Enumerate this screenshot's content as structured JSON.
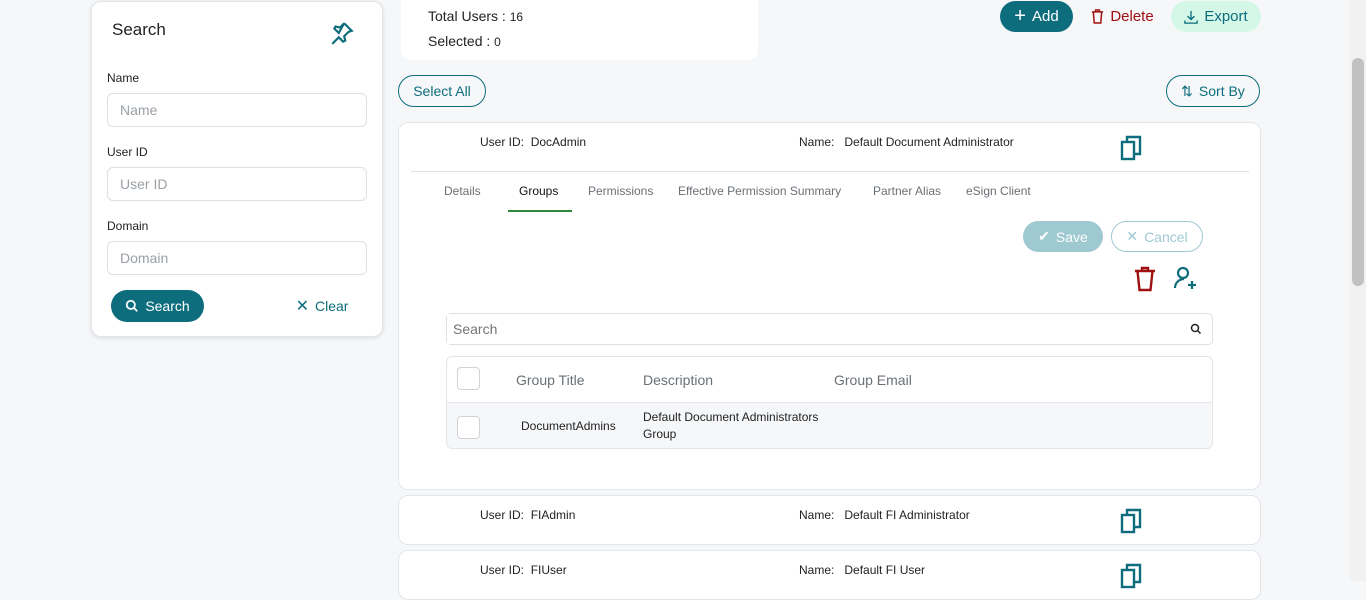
{
  "search_panel": {
    "title": "Search",
    "fields": [
      {
        "label": "Name",
        "placeholder": "Name"
      },
      {
        "label": "User ID",
        "placeholder": "User ID"
      },
      {
        "label": "Domain",
        "placeholder": "Domain"
      }
    ],
    "search_label": "Search",
    "clear_label": "Clear"
  },
  "summary": {
    "total_label": "Total Users :",
    "total": "16",
    "selected_label": "Selected :",
    "selected": "0"
  },
  "toolbar": {
    "add": "Add",
    "delete": "Delete",
    "export": "Export",
    "select_all": "Select All",
    "sort_by": "Sort By"
  },
  "users": [
    {
      "id_label": "User ID:",
      "id": "DocAdmin",
      "name_label": "Name:",
      "name": "Default Document Administrator"
    },
    {
      "id_label": "User ID:",
      "id": "FIAdmin",
      "name_label": "Name:",
      "name": "Default FI Administrator"
    },
    {
      "id_label": "User ID:",
      "id": "FIUser",
      "name_label": "Name:",
      "name": "Default FI User"
    }
  ],
  "tabs": [
    "Details",
    "Groups",
    "Permissions",
    "Effective Permission Summary",
    "Partner Alias",
    "eSign Client"
  ],
  "active_tab": "Groups",
  "groups": {
    "save": "Save",
    "cancel": "Cancel",
    "search_placeholder": "Search",
    "columns": [
      "Group Title",
      "Description",
      "Group Email"
    ],
    "rows": [
      {
        "title": "DocumentAdmins",
        "description": "Default Document Administrators Group",
        "email": ""
      }
    ]
  },
  "colors": {
    "accent": "#0d6d7d",
    "danger": "#a01010",
    "export_bg": "#d4f7e8"
  }
}
